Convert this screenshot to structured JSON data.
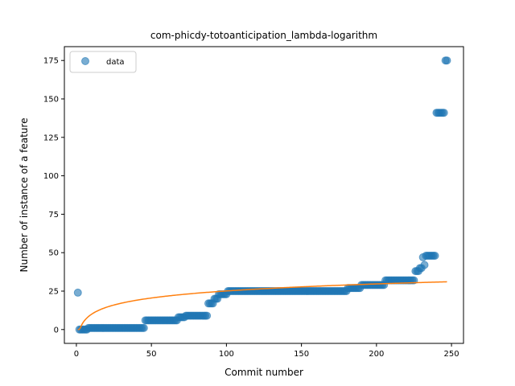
{
  "chart_data": {
    "type": "scatter",
    "title": "com-phicdy-totoanticipation_lambda-logarithm",
    "xlabel": "Commit number",
    "ylabel": "Number of instance of a feature",
    "xlim": [
      -8,
      258
    ],
    "ylim": [
      -9,
      184
    ],
    "xticks": [
      0,
      50,
      100,
      150,
      200,
      250
    ],
    "yticks": [
      0,
      25,
      50,
      75,
      100,
      125,
      150,
      175
    ],
    "grid": false,
    "legend": {
      "placement": "top-left",
      "entries": [
        "data"
      ]
    },
    "colors": {
      "data": "#1f77b4",
      "fit": "#ff7f0e"
    },
    "series": [
      {
        "name": "data",
        "kind": "scatter",
        "segments": [
          {
            "x_from": 1,
            "x_to": 1,
            "y": 24
          },
          {
            "x_from": 2,
            "x_to": 7,
            "y": 0
          },
          {
            "x_from": 8,
            "x_to": 45,
            "y": 1
          },
          {
            "x_from": 46,
            "x_to": 67,
            "y": 6
          },
          {
            "x_from": 68,
            "x_to": 72,
            "y": 8
          },
          {
            "x_from": 73,
            "x_to": 87,
            "y": 9
          },
          {
            "x_from": 88,
            "x_to": 91,
            "y": 17
          },
          {
            "x_from": 92,
            "x_to": 94,
            "y": 20
          },
          {
            "x_from": 95,
            "x_to": 100,
            "y": 23
          },
          {
            "x_from": 101,
            "x_to": 180,
            "y": 25
          },
          {
            "x_from": 181,
            "x_to": 189,
            "y": 27
          },
          {
            "x_from": 190,
            "x_to": 205,
            "y": 29
          },
          {
            "x_from": 206,
            "x_to": 225,
            "y": 32
          },
          {
            "x_from": 226,
            "x_to": 228,
            "y": 38
          },
          {
            "x_from": 229,
            "x_to": 230,
            "y": 40
          },
          {
            "x_from": 231,
            "x_to": 231,
            "y": 47
          },
          {
            "x_from": 232,
            "x_to": 232,
            "y": 42
          },
          {
            "x_from": 233,
            "x_to": 239,
            "y": 48
          },
          {
            "x_from": 240,
            "x_to": 245,
            "y": 141
          },
          {
            "x_from": 246,
            "x_to": 247,
            "y": 175
          }
        ]
      },
      {
        "name": "",
        "kind": "line",
        "model": "logarithm",
        "coefficients": {
          "a": 6.6,
          "b": -5.3
        },
        "x_range": [
          1,
          247
        ]
      }
    ]
  }
}
